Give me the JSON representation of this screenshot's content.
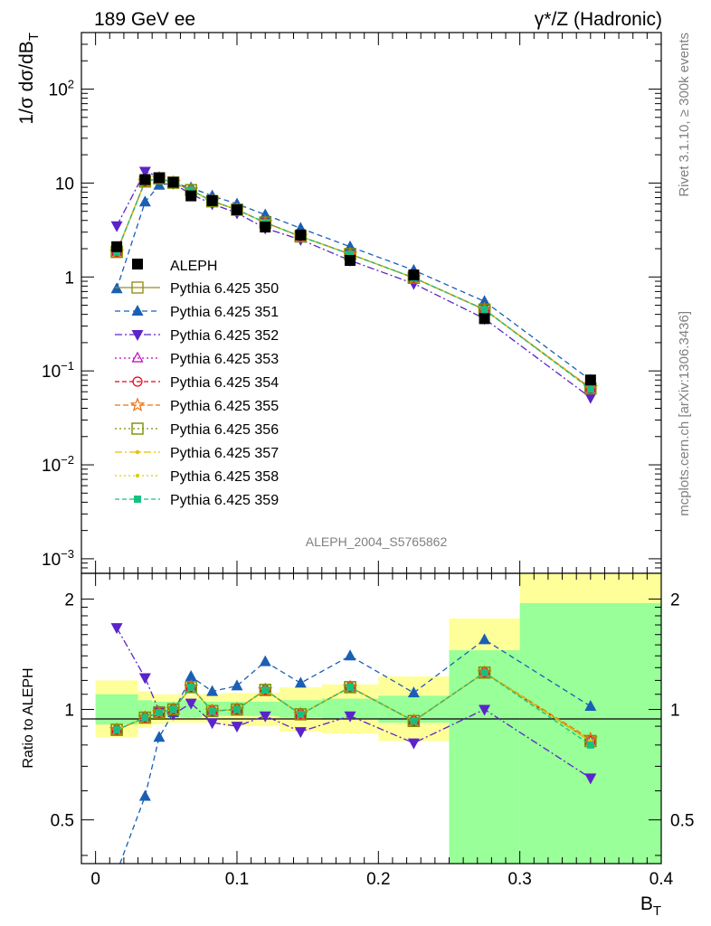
{
  "header": {
    "left": "189 GeV ee",
    "right": "γ*/Z (Hadronic)"
  },
  "side_labels": {
    "top": "Rivet 3.1.10, ≥ 300k events",
    "bottom": "mcplots.cern.ch [arXiv:1306.3436]"
  },
  "watermark": "ALEPH_2004_S5765862",
  "chart_data": [
    {
      "type": "line",
      "panel": "main",
      "ylabel": "1/σ dσ/dB_T",
      "yscale": "log",
      "ylim": [
        0.0007,
        400
      ],
      "xlim": [
        -0.01,
        0.4
      ],
      "yticks": [
        {
          "value": 0.001,
          "base": "10",
          "exp": "−3"
        },
        {
          "value": 0.01,
          "base": "10",
          "exp": "−2"
        },
        {
          "value": 0.1,
          "base": "10",
          "exp": "−1"
        },
        {
          "value": 1,
          "base": "1",
          "exp": ""
        },
        {
          "value": 10,
          "base": "10",
          "exp": ""
        },
        {
          "value": 100,
          "base": "10",
          "exp": "2"
        }
      ],
      "x": [
        0.015,
        0.035,
        0.045,
        0.055,
        0.0675,
        0.0825,
        0.1,
        0.12,
        0.145,
        0.18,
        0.225,
        0.275,
        0.35
      ],
      "data": {
        "name": "ALEPH",
        "values": [
          2.1,
          10.9,
          11.4,
          10.2,
          7.3,
          6.5,
          5.2,
          3.4,
          2.8,
          1.5,
          1.05,
          0.36,
          0.08
        ]
      },
      "series": [
        {
          "name": "Pythia 6.425 350",
          "values": [
            1.85,
            10.4,
            11.2,
            10.1,
            8.4,
            6.4,
            5.2,
            3.8,
            2.7,
            1.75,
            0.98,
            0.45,
            0.065
          ]
        },
        {
          "name": "Pythia 6.425 351",
          "values": [
            0.75,
            6.3,
            9.5,
            10.0,
            8.9,
            7.3,
            6.0,
            4.6,
            3.3,
            2.1,
            1.18,
            0.55,
            0.08
          ]
        },
        {
          "name": "Pythia 6.425 352",
          "values": [
            3.5,
            13.3,
            11.6,
            9.9,
            7.6,
            6.0,
            4.8,
            3.3,
            2.5,
            1.5,
            0.85,
            0.36,
            0.052
          ]
        },
        {
          "name": "Pythia 6.425 353",
          "values": [
            1.85,
            10.4,
            11.2,
            10.1,
            8.4,
            6.4,
            5.2,
            3.8,
            2.7,
            1.75,
            0.98,
            0.45,
            0.065
          ]
        },
        {
          "name": "Pythia 6.425 354",
          "values": [
            1.85,
            10.4,
            11.2,
            10.1,
            8.4,
            6.4,
            5.2,
            3.8,
            2.7,
            1.75,
            0.98,
            0.45,
            0.065
          ]
        },
        {
          "name": "Pythia 6.425 355",
          "values": [
            1.85,
            10.4,
            11.2,
            10.1,
            8.4,
            6.4,
            5.2,
            3.8,
            2.7,
            1.75,
            0.98,
            0.45,
            0.066
          ]
        },
        {
          "name": "Pythia 6.425 356",
          "values": [
            1.85,
            10.4,
            11.2,
            10.1,
            8.4,
            6.4,
            5.2,
            3.8,
            2.7,
            1.75,
            0.98,
            0.45,
            0.065
          ]
        },
        {
          "name": "Pythia 6.425 357",
          "values": [
            1.85,
            10.4,
            11.2,
            10.1,
            8.4,
            6.4,
            5.2,
            3.8,
            2.7,
            1.75,
            0.98,
            0.45,
            0.065
          ]
        },
        {
          "name": "Pythia 6.425 358",
          "values": [
            1.85,
            10.4,
            11.2,
            10.1,
            8.4,
            6.4,
            5.2,
            3.8,
            2.7,
            1.75,
            0.98,
            0.45,
            0.065
          ]
        },
        {
          "name": "Pythia 6.425 359",
          "values": [
            1.85,
            10.4,
            11.2,
            10.1,
            8.4,
            6.4,
            5.2,
            3.8,
            2.7,
            1.75,
            0.98,
            0.45,
            0.064
          ]
        }
      ],
      "legend": "left"
    },
    {
      "type": "line",
      "panel": "ratio",
      "ylabel": "Ratio to ALEPH",
      "xlabel": "B_T",
      "ylim": [
        0.38,
        2.35
      ],
      "xlim": [
        -0.01,
        0.4
      ],
      "xticks": [
        "0",
        "0.1",
        "0.2",
        "0.3",
        "0.4"
      ],
      "yticks": [
        "0.5",
        "1",
        "2"
      ],
      "bands": {
        "edges": [
          0,
          0.03,
          0.04,
          0.05,
          0.06,
          0.075,
          0.09,
          0.11,
          0.13,
          0.16,
          0.2,
          0.25,
          0.3,
          0.4
        ],
        "inner": [
          [
            0.91,
            1.1
          ],
          [
            0.94,
            1.06
          ],
          [
            0.95,
            1.05
          ],
          [
            0.96,
            1.05
          ],
          [
            0.95,
            1.06
          ],
          [
            0.96,
            1.05
          ],
          [
            0.96,
            1.05
          ],
          [
            0.96,
            1.05
          ],
          [
            0.95,
            1.06
          ],
          [
            0.94,
            1.07
          ],
          [
            0.92,
            1.09
          ],
          [
            0.38,
            1.45
          ],
          [
            0.38,
            1.95
          ]
        ],
        "outer": [
          [
            0.84,
            1.2
          ],
          [
            0.89,
            1.12
          ],
          [
            0.91,
            1.1
          ],
          [
            0.92,
            1.1
          ],
          [
            0.92,
            1.1
          ],
          [
            0.92,
            1.1
          ],
          [
            0.9,
            1.11
          ],
          [
            0.9,
            1.11
          ],
          [
            0.87,
            1.15
          ],
          [
            0.86,
            1.17
          ],
          [
            0.82,
            1.23
          ],
          [
            0.67,
            1.77
          ],
          [
            0.38,
            2.35
          ]
        ]
      },
      "x": [
        0.015,
        0.035,
        0.045,
        0.055,
        0.0675,
        0.0825,
        0.1,
        0.12,
        0.145,
        0.18,
        0.225,
        0.275,
        0.35
      ],
      "series": [
        {
          "name": "Pythia 6.425 350",
          "values": [
            0.88,
            0.95,
            0.98,
            1.0,
            1.15,
            0.99,
            1.0,
            1.13,
            0.97,
            1.15,
            0.93,
            1.26,
            0.82
          ]
        },
        {
          "name": "Pythia 6.425 351",
          "values": [
            0.36,
            0.58,
            0.84,
            0.98,
            1.23,
            1.12,
            1.16,
            1.35,
            1.18,
            1.4,
            1.11,
            1.55,
            1.02
          ]
        },
        {
          "name": "Pythia 6.425 352",
          "values": [
            1.67,
            1.22,
            0.99,
            0.97,
            1.04,
            0.92,
            0.9,
            0.96,
            0.87,
            0.96,
            0.81,
            1.0,
            0.65
          ]
        },
        {
          "name": "Pythia 6.425 353",
          "values": [
            0.88,
            0.95,
            0.98,
            1.0,
            1.15,
            0.99,
            1.0,
            1.13,
            0.97,
            1.15,
            0.93,
            1.26,
            0.82
          ]
        },
        {
          "name": "Pythia 6.425 354",
          "values": [
            0.88,
            0.95,
            0.98,
            1.0,
            1.15,
            0.99,
            1.0,
            1.13,
            0.97,
            1.15,
            0.93,
            1.26,
            0.82
          ]
        },
        {
          "name": "Pythia 6.425 355",
          "values": [
            0.88,
            0.95,
            0.98,
            1.0,
            1.15,
            0.99,
            1.0,
            1.13,
            0.97,
            1.15,
            0.93,
            1.26,
            0.83
          ]
        },
        {
          "name": "Pythia 6.425 356",
          "values": [
            0.88,
            0.95,
            0.98,
            1.0,
            1.15,
            0.99,
            1.0,
            1.13,
            0.97,
            1.15,
            0.93,
            1.26,
            0.82
          ]
        },
        {
          "name": "Pythia 6.425 357",
          "values": [
            0.88,
            0.95,
            0.98,
            1.0,
            1.15,
            0.99,
            1.0,
            1.13,
            0.97,
            1.15,
            0.93,
            1.26,
            0.82
          ]
        },
        {
          "name": "Pythia 6.425 358",
          "values": [
            0.88,
            0.95,
            0.98,
            1.0,
            1.15,
            0.99,
            1.0,
            1.13,
            0.97,
            1.15,
            0.93,
            1.26,
            0.82
          ]
        },
        {
          "name": "Pythia 6.425 359",
          "values": [
            0.88,
            0.95,
            0.98,
            1.0,
            1.15,
            0.99,
            1.0,
            1.13,
            0.97,
            1.15,
            0.93,
            1.26,
            0.8
          ]
        }
      ]
    }
  ],
  "styles": {
    "data_color": "#000000",
    "band_inner": "#99ff99",
    "band_outer": "#ffff99",
    "series": [
      {
        "color": "#998f1a",
        "marker": "open-square",
        "dash": ""
      },
      {
        "color": "#1a5fb4",
        "marker": "triangle-up",
        "dash": "6,4"
      },
      {
        "color": "#5b23c9",
        "marker": "triangle-down",
        "dash": "8,3,2,3"
      },
      {
        "color": "#c000c0",
        "marker": "open-triangle",
        "dash": "2,3"
      },
      {
        "color": "#e8001a",
        "marker": "open-circle",
        "dash": "5,3"
      },
      {
        "color": "#f07010",
        "marker": "open-star",
        "dash": "6,3"
      },
      {
        "color": "#7a8f00",
        "marker": "open-square",
        "dash": "2,3"
      },
      {
        "color": "#e8c000",
        "marker": "dot",
        "dash": "8,3,2,3"
      },
      {
        "color": "#d8d000",
        "marker": "dot",
        "dash": "2,3"
      },
      {
        "color": "#18c080",
        "marker": "filled-square",
        "dash": "5,3"
      }
    ]
  }
}
